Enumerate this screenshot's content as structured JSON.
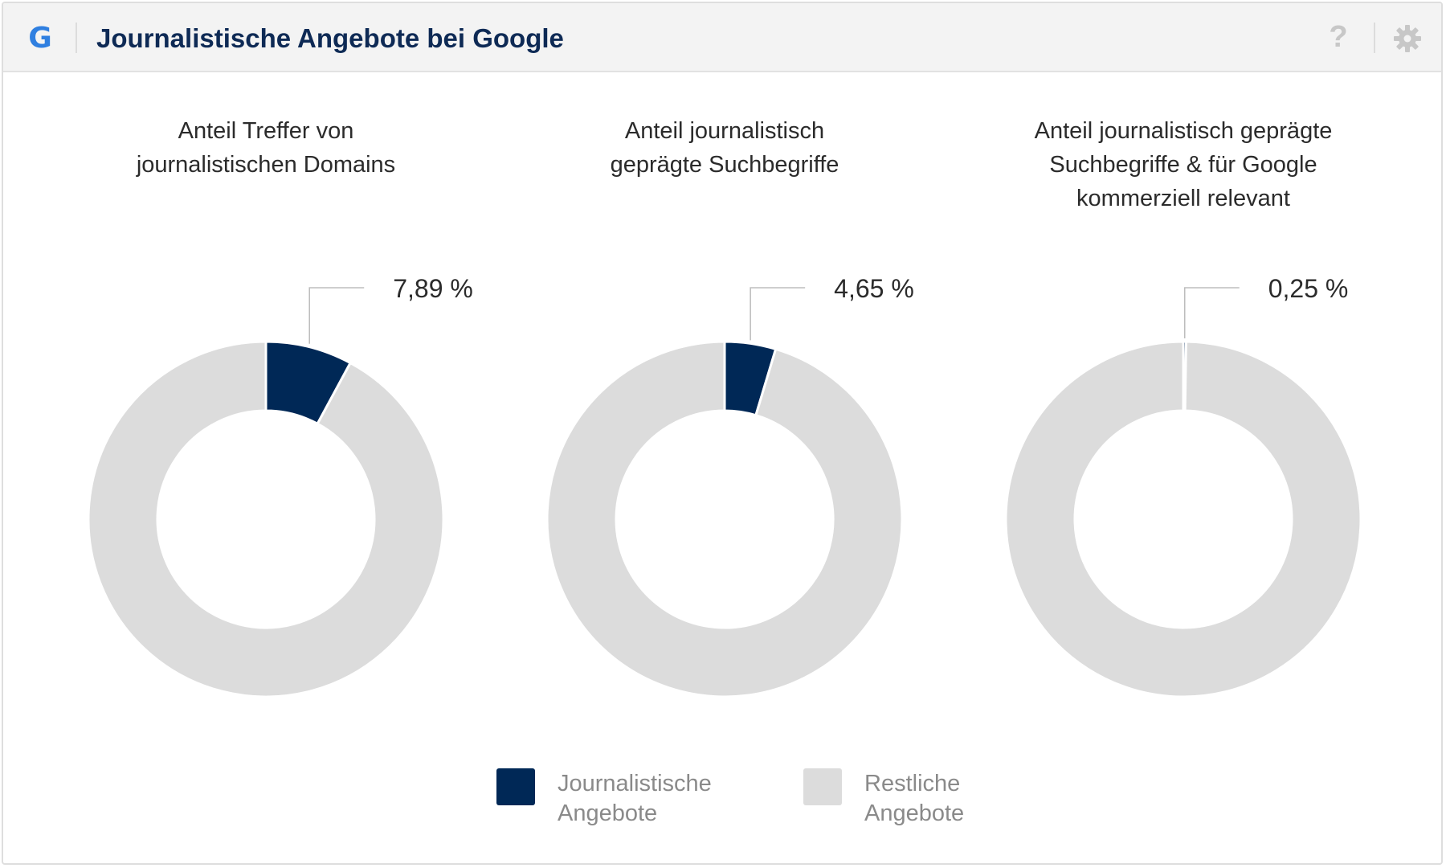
{
  "header": {
    "title": "Journalistische Angebote bei Google",
    "logo_letter": "G",
    "help_symbol": "?"
  },
  "colors": {
    "journalistic": "#002856",
    "rest": "#dcdcdc",
    "header_bg": "#f3f3f3",
    "title": "#0e2a55",
    "logo": "#2f7fe0",
    "icons": "#c7c7c7"
  },
  "icons": [
    "google-g-icon",
    "help-icon",
    "gear-icon"
  ],
  "chart_data": [
    {
      "type": "pie",
      "title_lines": [
        "Anteil Treffer von",
        "journalistischen Domains"
      ],
      "categories": [
        "Journalistische Angebote",
        "Restliche Angebote"
      ],
      "values": [
        7.89,
        92.11
      ],
      "value_label": "7,89 %"
    },
    {
      "type": "pie",
      "title_lines": [
        "Anteil journalistisch",
        "geprägte Suchbegriffe"
      ],
      "categories": [
        "Journalistische Angebote",
        "Restliche Angebote"
      ],
      "values": [
        4.65,
        95.35
      ],
      "value_label": "4,65 %"
    },
    {
      "type": "pie",
      "title_lines": [
        "Anteil journalistisch geprägte",
        "Suchbegriffe & für Google",
        "kommerziell relevant"
      ],
      "categories": [
        "Journalistische Angebote",
        "Restliche Angebote"
      ],
      "values": [
        0.25,
        99.75
      ],
      "value_label": "0,25 %"
    }
  ],
  "legend": {
    "placement": "bottom-center",
    "items": [
      {
        "label_lines": [
          "Journalistische",
          "Angebote"
        ],
        "color": "#002856"
      },
      {
        "label_lines": [
          "Restliche",
          "Angebote"
        ],
        "color": "#dcdcdc"
      }
    ]
  }
}
